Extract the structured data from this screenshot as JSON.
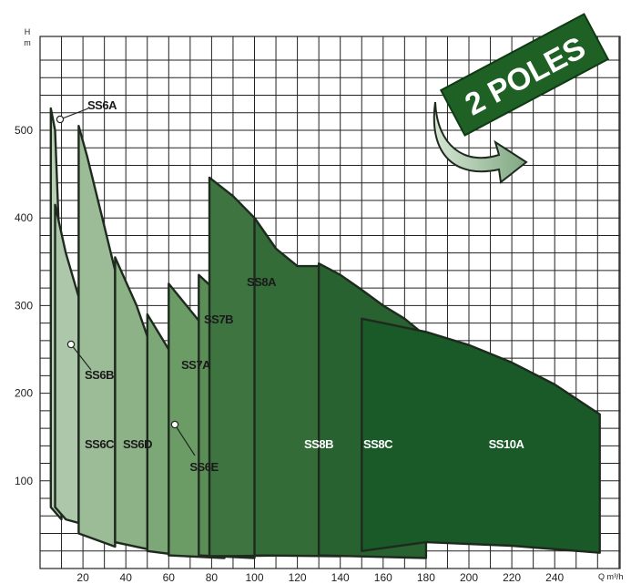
{
  "chart_data": {
    "type": "area",
    "title": "",
    "xlabel": "",
    "ylabel": "",
    "y_axis_unit_top": "H",
    "y_axis_unit_bottom": "m",
    "x_axis_unit": "Q m³/h",
    "xlim": [
      0,
      270
    ],
    "ylim": [
      0,
      580
    ],
    "x_ticks": [
      20,
      40,
      60,
      80,
      100,
      120,
      140,
      160,
      180,
      200,
      220,
      240
    ],
    "y_ticks": [
      100,
      200,
      300,
      400,
      500
    ],
    "grid": true,
    "badge": "2 POLES",
    "colors": {
      "badge_green": "#1f6125",
      "badge_arrow": "#7fa781",
      "outline": "#1f2a1f"
    },
    "series": [
      {
        "name": "SS6A",
        "color": "#b9d0b6",
        "text_color": "#1a1a1a",
        "label_pos": "top",
        "flow_range": [
          5,
          10
        ],
        "top": [
          [
            5,
            525
          ],
          [
            7,
            500
          ],
          [
            10,
            310
          ]
        ],
        "bottom": [
          [
            5,
            70
          ],
          [
            10,
            56
          ]
        ]
      },
      {
        "name": "SS6B",
        "color": "#adc7aa",
        "text_color": "#1a1a1a",
        "label_pos": "leader",
        "flow_range": [
          7,
          18
        ],
        "top": [
          [
            7,
            415
          ],
          [
            12,
            360
          ],
          [
            18,
            310
          ]
        ],
        "bottom": [
          [
            7,
            70
          ],
          [
            12,
            56
          ],
          [
            18,
            52
          ]
        ]
      },
      {
        "name": "SS6C",
        "color": "#9cbc98",
        "text_color": "#1a1a1a",
        "flow_range": [
          18,
          35
        ],
        "top": [
          [
            18,
            505
          ],
          [
            22,
            470
          ],
          [
            30,
            390
          ],
          [
            35,
            340
          ]
        ],
        "bottom": [
          [
            18,
            40
          ],
          [
            35,
            25
          ]
        ]
      },
      {
        "name": "SS6D",
        "color": "#8db287",
        "text_color": "#1a1a1a",
        "flow_range": [
          35,
          58
        ],
        "top": [
          [
            35,
            355
          ],
          [
            45,
            300
          ],
          [
            55,
            230
          ],
          [
            58,
            210
          ]
        ],
        "bottom": [
          [
            35,
            30
          ],
          [
            58,
            18
          ]
        ]
      },
      {
        "name": "SS6E",
        "color": "#7ca776",
        "text_color": "#1a1a1a",
        "label_pos": "leader",
        "flow_range": [
          50,
          69
        ],
        "top": [
          [
            50,
            290
          ],
          [
            60,
            250
          ],
          [
            69,
            190
          ]
        ],
        "bottom": [
          [
            50,
            20
          ],
          [
            69,
            14
          ]
        ]
      },
      {
        "name": "SS7A",
        "color": "#6b9c66",
        "text_color": "#1a1a1a",
        "flow_range": [
          60,
          86
        ],
        "top": [
          [
            60,
            325
          ],
          [
            70,
            295
          ],
          [
            80,
            265
          ],
          [
            86,
            240
          ]
        ],
        "bottom": [
          [
            60,
            15
          ],
          [
            86,
            12
          ]
        ]
      },
      {
        "name": "SS7B",
        "color": "#5b8e57",
        "text_color": "#1a1a1a",
        "flow_range": [
          74,
          100
        ],
        "top": [
          [
            74,
            335
          ],
          [
            85,
            310
          ],
          [
            95,
            280
          ],
          [
            100,
            250
          ]
        ],
        "bottom": [
          [
            74,
            15
          ],
          [
            100,
            12
          ]
        ]
      },
      {
        "name": "SS8A",
        "color": "#3d7440",
        "text_color": "#1a1a1a",
        "flow_range": [
          79,
          120
        ],
        "top": [
          [
            79,
            446
          ],
          [
            90,
            425
          ],
          [
            100,
            400
          ],
          [
            110,
            365
          ],
          [
            120,
            330
          ]
        ],
        "bottom": [
          [
            79,
            14
          ],
          [
            120,
            15
          ]
        ]
      },
      {
        "name": "SS8B",
        "color": "#336c37",
        "text_color": "#ffffff",
        "flow_range": [
          100,
          140
        ],
        "top": [
          [
            100,
            400
          ],
          [
            110,
            365
          ],
          [
            120,
            345
          ],
          [
            130,
            345
          ],
          [
            140,
            318
          ]
        ],
        "bottom": [
          [
            100,
            15
          ],
          [
            140,
            14
          ]
        ]
      },
      {
        "name": "SS8C",
        "color": "#286230",
        "text_color": "#ffffff",
        "flow_range": [
          130,
          180
        ],
        "top": [
          [
            130,
            348
          ],
          [
            140,
            335
          ],
          [
            150,
            318
          ],
          [
            160,
            300
          ],
          [
            170,
            285
          ],
          [
            180,
            265
          ]
        ],
        "bottom": [
          [
            130,
            15
          ],
          [
            180,
            12
          ]
        ]
      },
      {
        "name": "SS10A",
        "color": "#195a28",
        "text_color": "#ffffff",
        "flow_range": [
          150,
          261
        ],
        "top": [
          [
            150,
            285
          ],
          [
            160,
            280
          ],
          [
            180,
            270
          ],
          [
            200,
            255
          ],
          [
            220,
            235
          ],
          [
            240,
            210
          ],
          [
            261,
            176
          ]
        ],
        "bottom": [
          [
            150,
            20
          ],
          [
            180,
            30
          ],
          [
            220,
            26
          ],
          [
            261,
            18
          ]
        ]
      }
    ]
  }
}
